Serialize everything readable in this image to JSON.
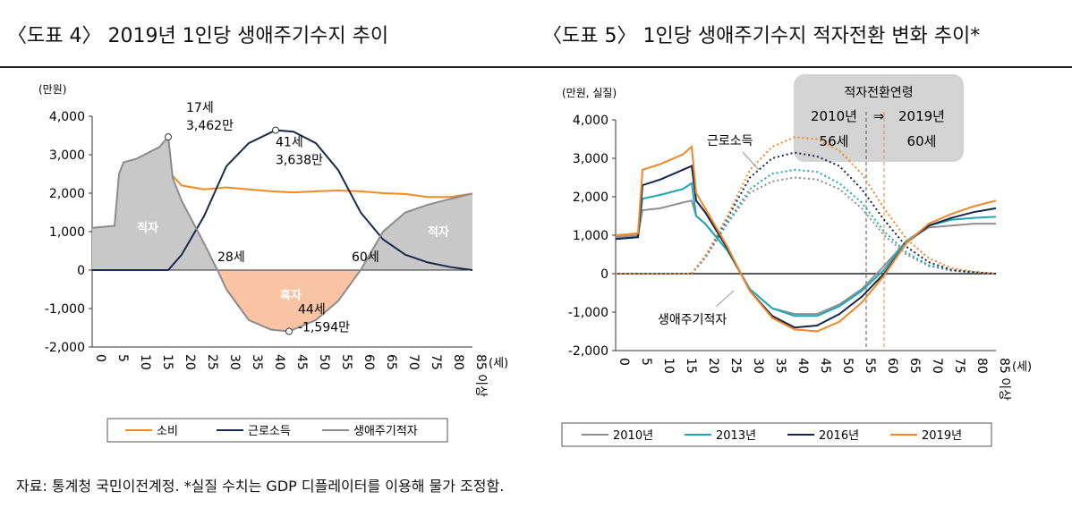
{
  "titles": {
    "left": "〈도표 4〉 2019년 1인당 생애주기수지 추이",
    "right": "〈도표 5〉 1인당 생애주기수지 적자전환 변화 추이*"
  },
  "footer": "자료: 통계청 국민이전계정. *실질 수치는 GDP 디플레이터를 이용해 물가 조정함.",
  "chart_data": [
    {
      "type": "line",
      "ylabel": "(만원)",
      "xlabel": "(세)",
      "ylim": [
        -2000,
        4000
      ],
      "yticks": [
        4000,
        3000,
        2000,
        1000,
        0,
        -1000,
        -2000
      ],
      "xticks": [
        "0",
        "5",
        "10",
        "15",
        "20",
        "25",
        "30",
        "35",
        "40",
        "45",
        "50",
        "55",
        "60",
        "65",
        "70",
        "75",
        "80",
        "85 이상"
      ],
      "series": [
        {
          "name": "소비",
          "color": "#f08a24",
          "x": [
            18,
            20,
            25,
            30,
            35,
            40,
            45,
            50,
            55,
            60,
            65,
            70,
            75,
            80,
            85
          ],
          "y": [
            2450,
            2200,
            2100,
            2150,
            2100,
            2050,
            2020,
            2050,
            2070,
            2050,
            2000,
            1980,
            1900,
            1900,
            1990
          ]
        },
        {
          "name": "근로소득",
          "color": "#1b2a4a",
          "x": [
            0,
            17,
            20,
            25,
            30,
            35,
            41,
            45,
            50,
            55,
            60,
            65,
            70,
            75,
            80,
            85
          ],
          "y": [
            0,
            0,
            400,
            1400,
            2700,
            3300,
            3638,
            3600,
            3300,
            2600,
            1500,
            800,
            400,
            200,
            80,
            0
          ]
        },
        {
          "name": "생애주기적자",
          "color": "#8c8c8c",
          "x": [
            0,
            5,
            6,
            7,
            10,
            15,
            17,
            18,
            20,
            25,
            28,
            30,
            35,
            40,
            44,
            50,
            55,
            60,
            65,
            70,
            75,
            80,
            85
          ],
          "y": [
            1100,
            1150,
            2500,
            2800,
            2900,
            3200,
            3462,
            2400,
            1800,
            700,
            0,
            -500,
            -1300,
            -1550,
            -1594,
            -1300,
            -800,
            0,
            1000,
            1500,
            1700,
            1850,
            1990
          ]
        }
      ],
      "annotations": [
        {
          "text": [
            "17세",
            "3,462만"
          ],
          "x": 17,
          "y": 3462
        },
        {
          "text": [
            "41세",
            "3,638만"
          ],
          "x": 41,
          "y": 3638
        },
        {
          "text": [
            "44세",
            "-1,594만"
          ],
          "x": 44,
          "y": -1594
        },
        {
          "text": [
            "28세"
          ],
          "x": 28,
          "y": 0
        },
        {
          "text": [
            "60세"
          ],
          "x": 60,
          "y": 0
        }
      ],
      "area_labels": {
        "deficit": "적자",
        "surplus": "흑자"
      },
      "colors": {
        "deficit_fill": "#c8c8c8",
        "surplus_fill": "#f9c4a4"
      }
    },
    {
      "type": "line",
      "ylabel": "(만원, 실질)",
      "xlabel": "(세)",
      "ylim": [
        -2000,
        4000
      ],
      "yticks": [
        4000,
        3000,
        2000,
        1000,
        0,
        -1000,
        -2000
      ],
      "xticks": [
        "0",
        "5",
        "10",
        "15",
        "20",
        "25",
        "30",
        "35",
        "40",
        "45",
        "50",
        "55",
        "60",
        "65",
        "70",
        "75",
        "80",
        "85 이상"
      ],
      "labels": {
        "income": "근로소득",
        "deficit": "생애주기적자"
      },
      "box": {
        "title": "적자전환연령",
        "from_year": "2010년",
        "arrow": "⇒",
        "to_year": "2019년",
        "from_age": "56세",
        "to_age": "60세"
      },
      "crossings": [
        56,
        60
      ],
      "deficit_x": [
        0,
        5,
        6,
        10,
        15,
        17,
        18,
        20,
        25,
        28,
        30,
        35,
        40,
        45,
        50,
        55,
        60,
        65,
        70,
        75,
        80,
        85
      ],
      "income_x": [
        17,
        20,
        25,
        30,
        35,
        40,
        45,
        50,
        55,
        60,
        65,
        70,
        75,
        80,
        85
      ],
      "series": [
        {
          "name": "2010년",
          "color": "#8f8f8f",
          "deficit": [
            950,
            1000,
            1650,
            1700,
            1850,
            1900,
            1500,
            1300,
            600,
            0,
            -400,
            -900,
            -1050,
            -1050,
            -800,
            -400,
            200,
            850,
            1200,
            1250,
            1300,
            1300
          ],
          "income": [
            0,
            400,
            1300,
            2100,
            2400,
            2500,
            2450,
            2200,
            1700,
            1000,
            500,
            200,
            80,
            30,
            0
          ]
        },
        {
          "name": "2013년",
          "color": "#1fa7b8",
          "deficit": [
            900,
            950,
            1950,
            2050,
            2200,
            2350,
            1500,
            1300,
            600,
            0,
            -400,
            -900,
            -1100,
            -1100,
            -850,
            -450,
            100,
            850,
            1250,
            1400,
            1450,
            1480
          ],
          "income": [
            0,
            420,
            1350,
            2200,
            2600,
            2700,
            2650,
            2350,
            1850,
            1100,
            550,
            220,
            90,
            30,
            0
          ]
        },
        {
          "name": "2016년",
          "color": "#16254a",
          "deficit": [
            900,
            950,
            2300,
            2450,
            2700,
            2800,
            1900,
            1600,
            650,
            0,
            -450,
            -1100,
            -1400,
            -1350,
            -1050,
            -600,
            0,
            800,
            1250,
            1450,
            1600,
            1700
          ],
          "income": [
            0,
            450,
            1450,
            2500,
            3000,
            3150,
            3050,
            2800,
            2200,
            1400,
            700,
            300,
            100,
            40,
            0
          ]
        },
        {
          "name": "2019년",
          "color": "#f0872a",
          "deficit": [
            1000,
            1050,
            2700,
            2850,
            3100,
            3300,
            2100,
            1700,
            700,
            0,
            -450,
            -1150,
            -1450,
            -1500,
            -1250,
            -750,
            -50,
            800,
            1300,
            1550,
            1750,
            1900
          ],
          "income": [
            0,
            450,
            1500,
            2700,
            3300,
            3550,
            3500,
            3200,
            2600,
            1700,
            900,
            400,
            150,
            50,
            0
          ]
        }
      ]
    }
  ]
}
